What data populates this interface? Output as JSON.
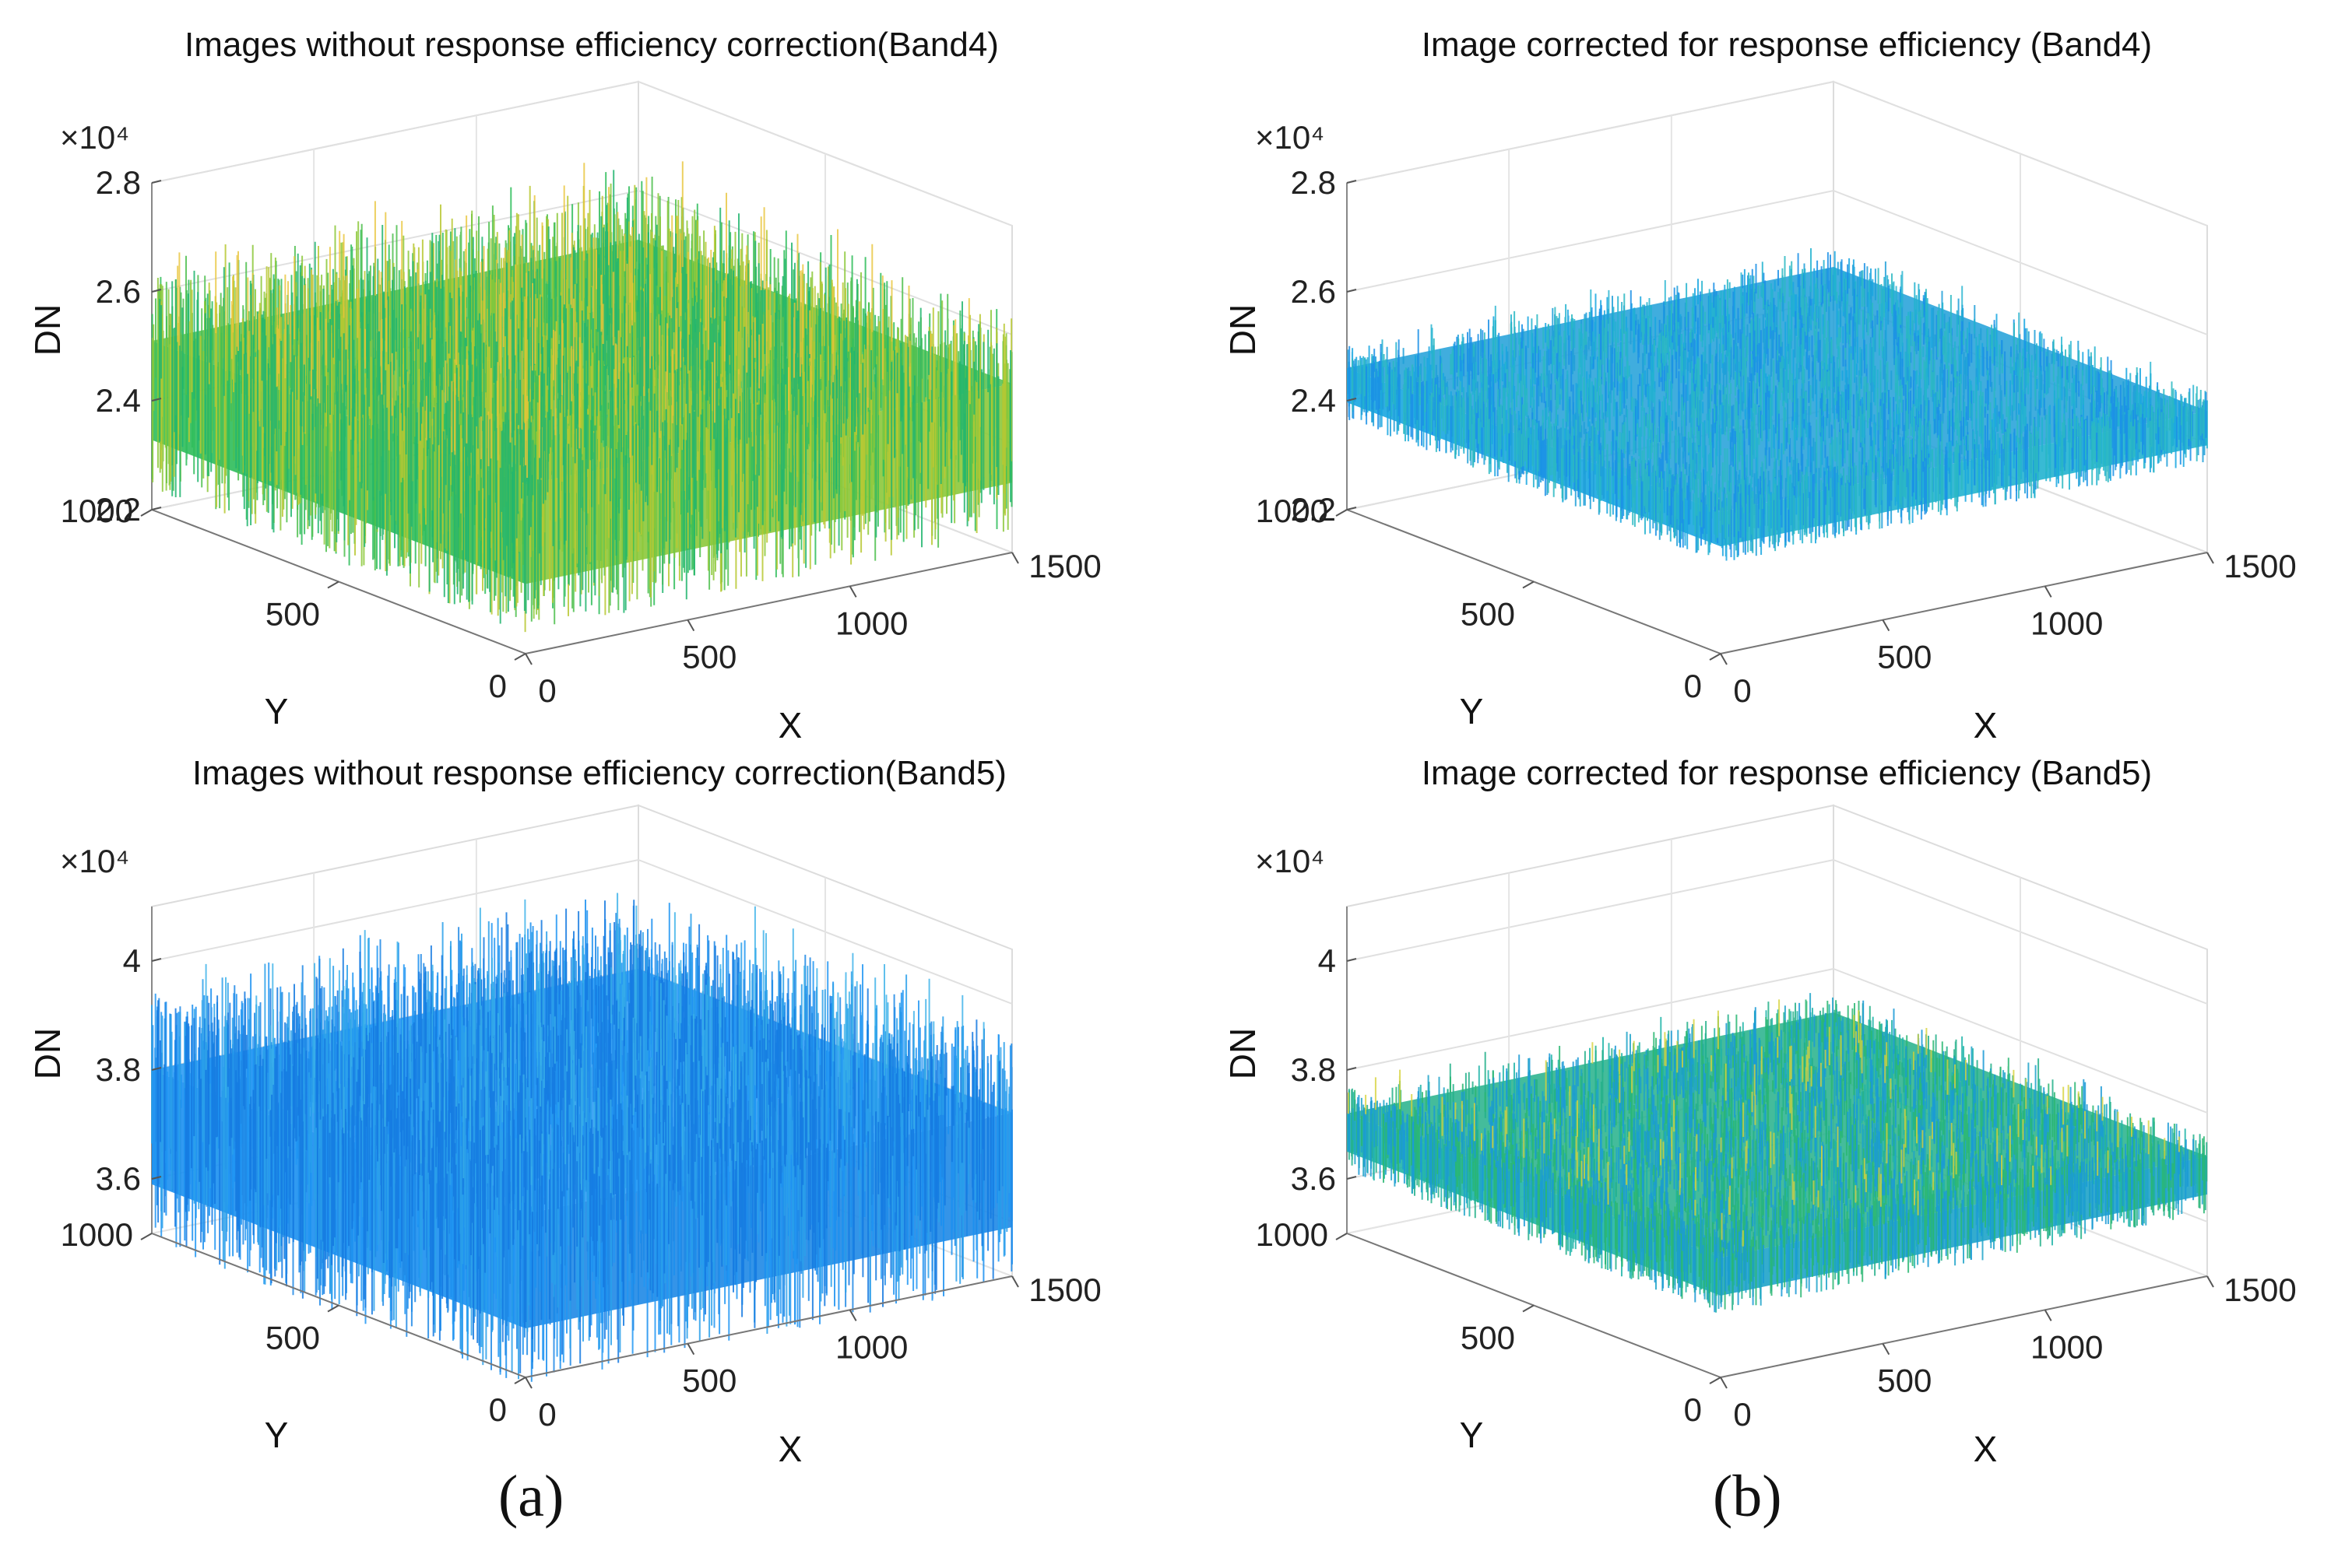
{
  "figure": {
    "panel_labels": {
      "a": "(a)",
      "b": "(b)"
    }
  },
  "chart_data": [
    {
      "type": "surface3d",
      "title": "Images without response efficiency correction(Band4)",
      "xlabel": "X",
      "ylabel": "Y",
      "zlabel": "DN",
      "z_multiplier": "×10⁴",
      "x_ticks": [
        "0",
        "500",
        "1000",
        "1500"
      ],
      "y_ticks": [
        "0",
        "500",
        "1000"
      ],
      "z_ticks": [
        "2.2",
        "2.4",
        "2.6",
        "2.8"
      ],
      "xlim": [
        0,
        1500
      ],
      "ylim": [
        0,
        1000
      ],
      "zlim": [
        2.2,
        2.8
      ],
      "z_mean": 2.51,
      "z_noise": 0.13,
      "colors": [
        "#2ebd5a",
        "#4ec04e",
        "#8cc83a",
        "#b8c832",
        "#21b56e"
      ],
      "spike_color": "#e8c43a"
    },
    {
      "type": "surface3d",
      "title": "Image corrected for response efficiency (Band4)",
      "xlabel": "X",
      "ylabel": "Y",
      "zlabel": "DN",
      "z_multiplier": "×10⁴",
      "x_ticks": [
        "0",
        "500",
        "1000",
        "1500"
      ],
      "y_ticks": [
        "0",
        "500",
        "1000"
      ],
      "z_ticks": [
        "2.2",
        "2.4",
        "2.6",
        "2.8"
      ],
      "xlim": [
        0,
        1500
      ],
      "ylim": [
        0,
        1000
      ],
      "zlim": [
        2.2,
        2.8
      ],
      "z_mean": 2.46,
      "z_noise": 0.045,
      "colors": [
        "#18a6e0",
        "#1e9fd8",
        "#22b3cf",
        "#1a8fe6",
        "#2bb8c2"
      ],
      "spike_color": "#22b3cf"
    },
    {
      "type": "surface3d",
      "title": "Images without response efficiency correction(Band5)",
      "xlabel": "X",
      "ylabel": "Y",
      "zlabel": "DN",
      "z_multiplier": "×10⁴",
      "x_ticks": [
        "0",
        "500",
        "1000",
        "1500"
      ],
      "y_ticks": [
        "0",
        "500",
        "1000"
      ],
      "z_ticks": [
        "3.6",
        "3.8",
        "4"
      ],
      "xlim": [
        0,
        1500
      ],
      "ylim": [
        0,
        1000
      ],
      "zlim": [
        3.5,
        4.1
      ],
      "z_mean": 3.8,
      "z_noise": 0.15,
      "colors": [
        "#1a8ff0",
        "#2196f3",
        "#1e88e5",
        "#2aa0ea",
        "#1479e0"
      ],
      "spike_color": "#38b0e8"
    },
    {
      "type": "surface3d",
      "title": "Image corrected for response efficiency (Band5)",
      "xlabel": "X",
      "ylabel": "Y",
      "zlabel": "DN",
      "z_multiplier": "×10⁴",
      "x_ticks": [
        "0",
        "500",
        "1000",
        "1500"
      ],
      "y_ticks": [
        "0",
        "500",
        "1000"
      ],
      "z_ticks": [
        "3.6",
        "3.8",
        "4"
      ],
      "xlim": [
        0,
        1500
      ],
      "ylim": [
        0,
        1000
      ],
      "zlim": [
        3.5,
        4.1
      ],
      "z_mean": 3.72,
      "z_noise": 0.05,
      "colors": [
        "#1fb4a8",
        "#23b08a",
        "#1ea3c9",
        "#2ab772",
        "#1a9ad6"
      ],
      "spike_color": "#d6d23a"
    }
  ]
}
